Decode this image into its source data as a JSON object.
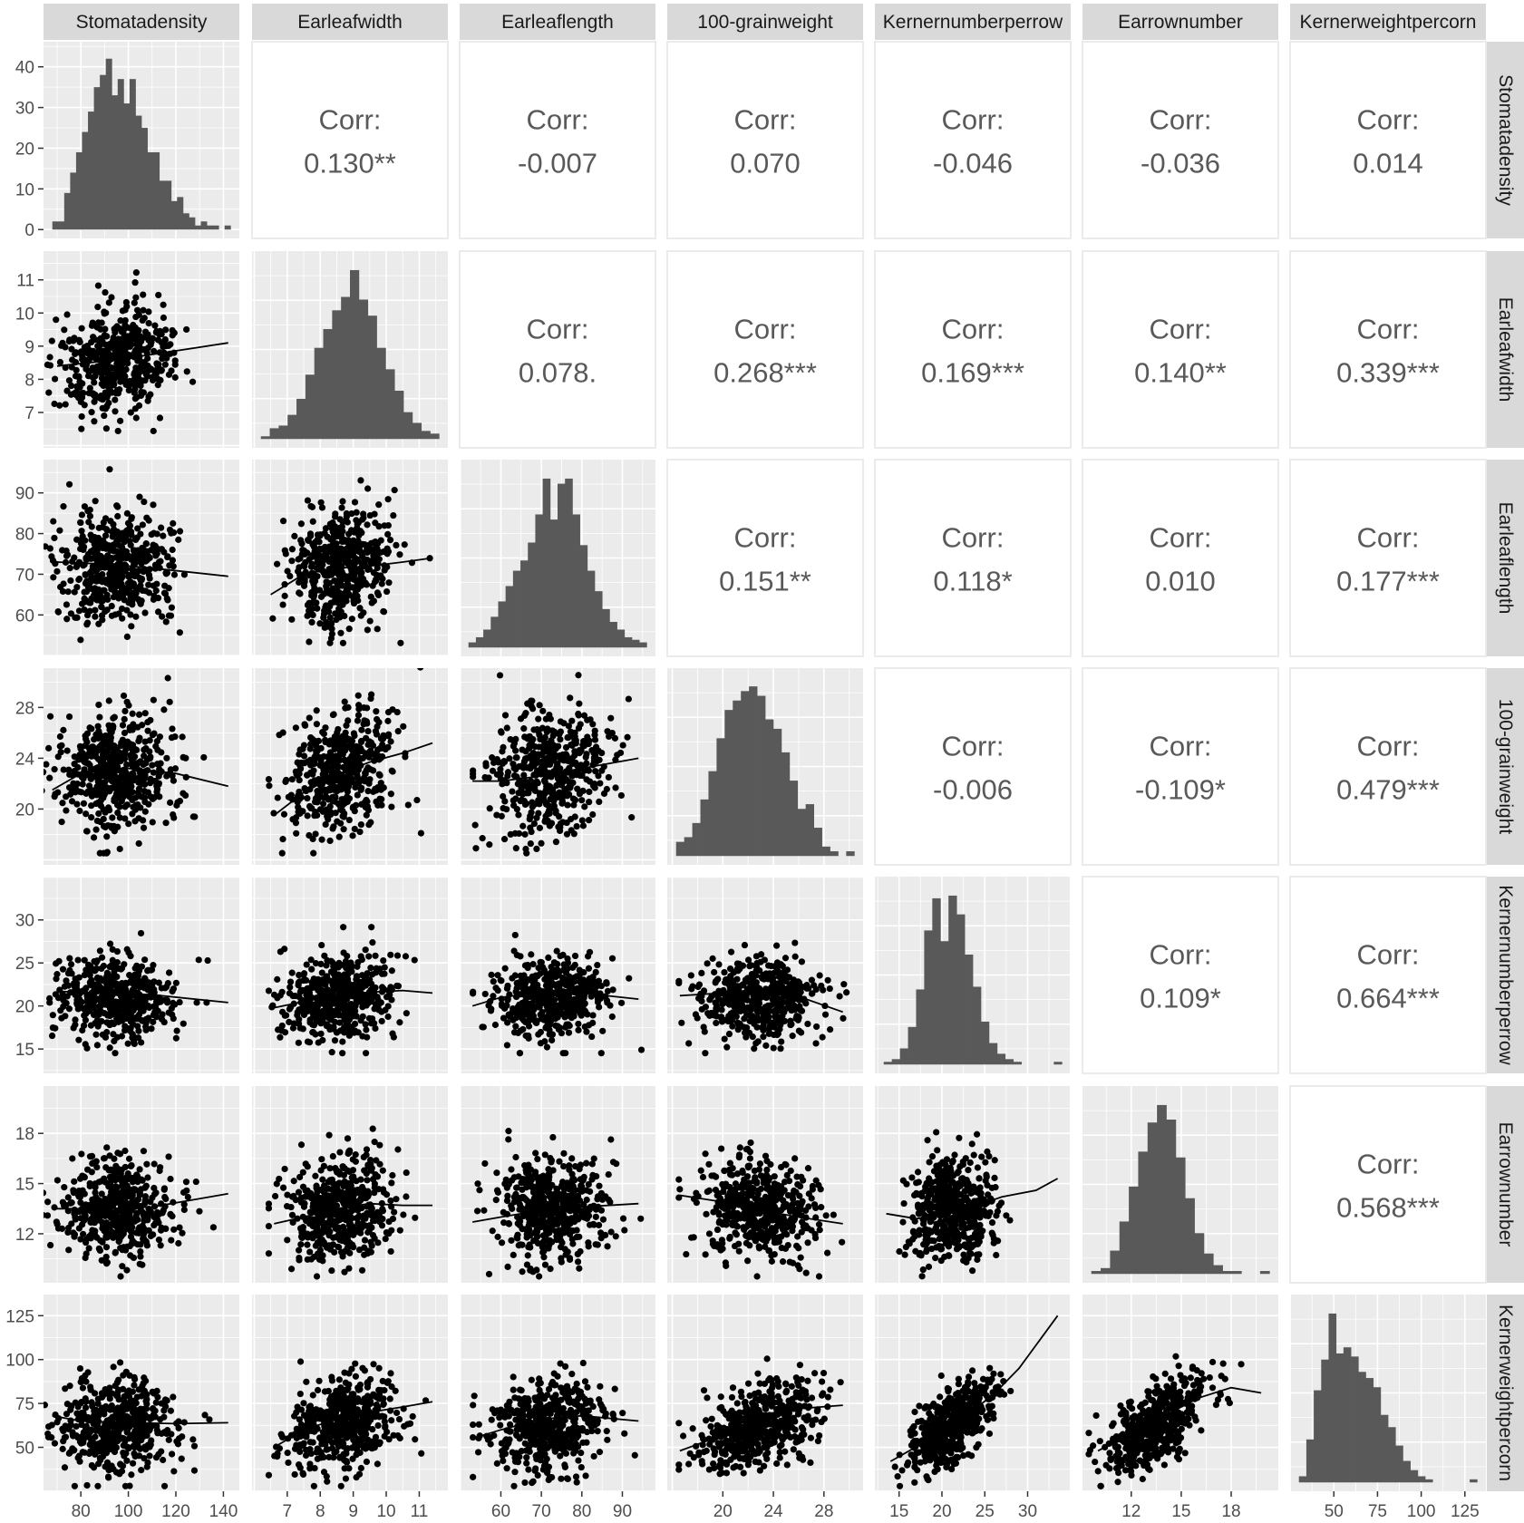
{
  "chart_data": {
    "type": "scatter",
    "title": "",
    "corr_label": "Corr:",
    "variables": [
      {
        "name": "Stomatadensity",
        "range": [
          68,
          143
        ],
        "ticks": [
          80,
          100,
          120,
          140
        ],
        "mean": 95,
        "sd": 12,
        "hist_range": [
          0,
          44
        ],
        "hist_ticks": [
          0,
          10,
          20,
          30,
          40
        ],
        "hist_values": [
          2,
          2,
          9,
          14,
          19,
          24,
          29,
          35,
          38,
          42,
          33,
          37,
          31,
          37,
          28,
          25,
          19,
          19,
          12,
          12,
          7,
          8,
          4,
          3,
          1,
          2,
          1,
          1,
          0,
          1
        ]
      },
      {
        "name": "Earleafwidth",
        "range": [
          6.2,
          11.6
        ],
        "ticks": [
          7,
          8,
          9,
          10,
          11
        ],
        "mean": 8.6,
        "sd": 0.8,
        "hist_values": [
          1,
          4,
          5,
          9,
          15,
          24,
          34,
          41,
          48,
          53,
          63,
          52,
          46,
          34,
          26,
          18,
          10,
          6,
          3,
          2
        ]
      },
      {
        "name": "Earleaflength",
        "range": [
          52,
          96
        ],
        "ticks": [
          60,
          70,
          80,
          90
        ],
        "mean": 72,
        "sd": 7,
        "hist_values": [
          2,
          4,
          7,
          12,
          18,
          24,
          30,
          34,
          41,
          52,
          66,
          50,
          64,
          66,
          52,
          40,
          30,
          22,
          15,
          10,
          7,
          4,
          3,
          2
        ]
      },
      {
        "name": "100-grainweight",
        "range": [
          16.3,
          30.4
        ],
        "ticks": [
          20,
          24,
          28
        ],
        "mean": 23,
        "sd": 2.4,
        "hist_range": [
          0,
          38
        ],
        "hist_ticks": [],
        "hist_values": [
          3,
          4,
          7,
          12,
          18,
          25,
          31,
          33,
          35,
          36,
          34,
          29,
          27,
          22,
          16,
          10,
          11,
          6,
          2,
          1,
          0,
          1
        ]
      },
      {
        "name": "Kernernumberperrow",
        "range": [
          13.2,
          34
        ],
        "ticks": [
          15,
          20,
          25,
          30
        ],
        "mean": 21,
        "sd": 2.4,
        "hist_values": [
          1,
          2,
          6,
          14,
          28,
          50,
          62,
          46,
          63,
          56,
          41,
          29,
          16,
          8,
          4,
          2,
          1,
          0,
          0,
          0,
          0,
          1
        ]
      },
      {
        "name": "Earrownumber",
        "range": [
          9.6,
          20.3
        ],
        "ticks": [
          12,
          15,
          18
        ],
        "mean": 13.5,
        "sd": 1.5,
        "hist_values": [
          1,
          2,
          8,
          18,
          30,
          42,
          52,
          58,
          53,
          40,
          26,
          14,
          7,
          3,
          1,
          1,
          0,
          0,
          1
        ]
      },
      {
        "name": "Kernerweightpercorn",
        "range": [
          30,
          132
        ],
        "ticks": [
          50,
          75,
          100,
          125
        ],
        "mean": 63,
        "sd": 13,
        "hist_values": [
          2,
          14,
          30,
          40,
          55,
          42,
          44,
          41,
          36,
          34,
          31,
          22,
          18,
          12,
          7,
          4,
          2,
          1,
          0,
          0,
          0,
          0,
          0,
          1
        ]
      }
    ],
    "correlations": [
      {
        "row": 0,
        "col": 1,
        "label": "0.130**"
      },
      {
        "row": 0,
        "col": 2,
        "label": "-0.007"
      },
      {
        "row": 0,
        "col": 3,
        "label": "0.070"
      },
      {
        "row": 0,
        "col": 4,
        "label": "-0.046"
      },
      {
        "row": 0,
        "col": 5,
        "label": "-0.036"
      },
      {
        "row": 0,
        "col": 6,
        "label": "0.014"
      },
      {
        "row": 1,
        "col": 2,
        "label": "0.078."
      },
      {
        "row": 1,
        "col": 3,
        "label": "0.268***"
      },
      {
        "row": 1,
        "col": 4,
        "label": "0.169***"
      },
      {
        "row": 1,
        "col": 5,
        "label": "0.140**"
      },
      {
        "row": 1,
        "col": 6,
        "label": "0.339***"
      },
      {
        "row": 2,
        "col": 3,
        "label": "0.151**"
      },
      {
        "row": 2,
        "col": 4,
        "label": "0.118*"
      },
      {
        "row": 2,
        "col": 5,
        "label": "0.010"
      },
      {
        "row": 2,
        "col": 6,
        "label": "0.177***"
      },
      {
        "row": 3,
        "col": 4,
        "label": "-0.006"
      },
      {
        "row": 3,
        "col": 5,
        "label": "-0.109*"
      },
      {
        "row": 3,
        "col": 6,
        "label": "0.479***"
      },
      {
        "row": 4,
        "col": 5,
        "label": "0.109*"
      },
      {
        "row": 4,
        "col": 6,
        "label": "0.664***"
      },
      {
        "row": 5,
        "col": 6,
        "label": "0.568***"
      }
    ],
    "points_per_panel": 500,
    "smooth_lines": [
      {
        "row": 1,
        "col": 0,
        "x": [
          70,
          90,
          110,
          142
        ],
        "y": [
          8.4,
          8.55,
          8.75,
          9.1
        ]
      },
      {
        "row": 2,
        "col": 0,
        "x": [
          70,
          90,
          110,
          142
        ],
        "y": [
          73,
          72.5,
          71.5,
          69.5
        ]
      },
      {
        "row": 2,
        "col": 1,
        "x": [
          6.5,
          7.5,
          8.5,
          9.5,
          10.5,
          11.4
        ],
        "y": [
          65,
          70,
          71.5,
          72,
          73,
          74
        ]
      },
      {
        "row": 3,
        "col": 0,
        "x": [
          68,
          80,
          100,
          120,
          142
        ],
        "y": [
          21.5,
          22.8,
          23.2,
          22.8,
          21.8
        ]
      },
      {
        "row": 3,
        "col": 1,
        "x": [
          6.6,
          7.5,
          8.5,
          9.5,
          10.5,
          11.4
        ],
        "y": [
          19.5,
          21.3,
          22.7,
          23.7,
          24.4,
          25.2
        ]
      },
      {
        "row": 3,
        "col": 2,
        "x": [
          53,
          60,
          70,
          80,
          94
        ],
        "y": [
          22.2,
          22.2,
          22.6,
          23.2,
          24
        ]
      },
      {
        "row": 4,
        "col": 0,
        "x": [
          70,
          90,
          110,
          142
        ],
        "y": [
          21.7,
          21.5,
          21.3,
          20.4
        ]
      },
      {
        "row": 4,
        "col": 1,
        "x": [
          6.6,
          7.5,
          8.5,
          9.5,
          10.5,
          11.4
        ],
        "y": [
          19.8,
          20.5,
          21.2,
          21.6,
          21.8,
          21.5
        ]
      },
      {
        "row": 4,
        "col": 2,
        "x": [
          53,
          60,
          70,
          80,
          94
        ],
        "y": [
          20,
          21,
          21.6,
          21.5,
          20.8
        ]
      },
      {
        "row": 4,
        "col": 3,
        "x": [
          16.6,
          20,
          23,
          26,
          29.5
        ],
        "y": [
          21.2,
          21.5,
          21.5,
          21.1,
          19.3
        ]
      },
      {
        "row": 5,
        "col": 0,
        "x": [
          68,
          90,
          110,
          142
        ],
        "y": [
          13.5,
          13.5,
          13.6,
          14.4
        ]
      },
      {
        "row": 5,
        "col": 1,
        "x": [
          6.6,
          7.5,
          8.5,
          9.5,
          10.5,
          11.4
        ],
        "y": [
          12.6,
          13,
          13.5,
          13.8,
          13.7,
          13.7
        ]
      },
      {
        "row": 5,
        "col": 2,
        "x": [
          53,
          60,
          70,
          80,
          94
        ],
        "y": [
          12.7,
          13,
          13.4,
          13.6,
          13.8
        ]
      },
      {
        "row": 5,
        "col": 3,
        "x": [
          16.6,
          20,
          23,
          26,
          29.5
        ],
        "y": [
          14.3,
          13.9,
          13.4,
          13,
          12.6
        ]
      },
      {
        "row": 5,
        "col": 4,
        "x": [
          13.5,
          17,
          20,
          23,
          27,
          31,
          33.5
        ],
        "y": [
          13.2,
          12.9,
          13.1,
          13.5,
          14.2,
          14.6,
          15.3
        ]
      },
      {
        "row": 6,
        "col": 0,
        "x": [
          68,
          80,
          100,
          120,
          142
        ],
        "y": [
          68,
          65,
          64,
          63.5,
          64
        ]
      },
      {
        "row": 6,
        "col": 1,
        "x": [
          6.6,
          7.5,
          8.5,
          9.5,
          10.5,
          11.4
        ],
        "y": [
          50,
          60,
          66,
          70,
          73,
          76
        ]
      },
      {
        "row": 6,
        "col": 2,
        "x": [
          53,
          60,
          70,
          80,
          94
        ],
        "y": [
          55,
          60,
          66,
          68,
          65
        ]
      },
      {
        "row": 6,
        "col": 3,
        "x": [
          16.6,
          20,
          23,
          26,
          29.5
        ],
        "y": [
          48,
          57,
          65,
          72,
          74
        ]
      },
      {
        "row": 6,
        "col": 4,
        "x": [
          14,
          18,
          22,
          26,
          29,
          33.5
        ],
        "y": [
          42,
          53,
          65,
          80,
          95,
          125
        ]
      },
      {
        "row": 6,
        "col": 5,
        "x": [
          10,
          12,
          14,
          16,
          18,
          19.8
        ],
        "y": [
          48,
          58,
          68,
          78,
          84,
          81
        ]
      }
    ]
  }
}
